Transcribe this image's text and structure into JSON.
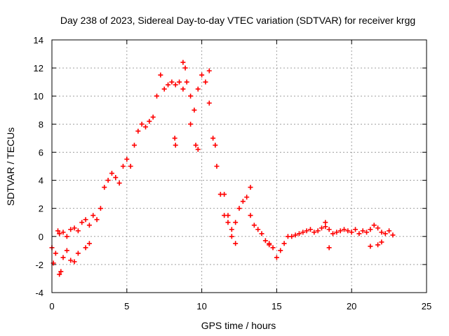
{
  "chart_data": {
    "type": "scatter",
    "title": "Day 238 of 2023, Sidereal Day-to-day VTEC variation (SDTVAR) for receiver krgg",
    "xlabel": "GPS time / hours",
    "ylabel": "SDTVAR / TECUs",
    "xlim": [
      0,
      25
    ],
    "ylim": [
      -4,
      14
    ],
    "xticks": [
      "0",
      "5",
      "10",
      "15",
      "20",
      "25"
    ],
    "yticks": [
      "-4",
      "-2",
      "0",
      "2",
      "4",
      "6",
      "8",
      "10",
      "12",
      "14"
    ],
    "grid": true,
    "marker": "+",
    "color": "#ff0000",
    "series": [
      {
        "name": "SDTVAR",
        "x": [
          0.0,
          0.25,
          0.5,
          0.75,
          1.0,
          1.25,
          1.5,
          1.75,
          2.0,
          2.25,
          2.5,
          2.75,
          3.0,
          3.25,
          3.5,
          3.75,
          4.0,
          4.25,
          4.5,
          4.75,
          5.0,
          5.25,
          5.5,
          5.75,
          6.0,
          6.25,
          6.5,
          6.75,
          7.0,
          7.25,
          7.5,
          7.75,
          8.0,
          8.25,
          8.5,
          8.75,
          9.0,
          9.25,
          9.5,
          9.75,
          10.0,
          10.25,
          10.5,
          10.75,
          11.0,
          11.25,
          11.5,
          11.75,
          12.0,
          12.25,
          12.5,
          12.75,
          13.0,
          13.25,
          13.5,
          13.75,
          14.0,
          14.25,
          14.5,
          14.75,
          15.0,
          15.25,
          15.5,
          15.75,
          16.0,
          16.25,
          16.5,
          16.75,
          17.0,
          17.25,
          17.5,
          17.75,
          18.0,
          18.25,
          18.5,
          18.75,
          19.0,
          19.25,
          19.5,
          19.75,
          20.0,
          20.25,
          20.5,
          20.75,
          21.0,
          21.25,
          21.5,
          21.75,
          22.0,
          22.25,
          22.5,
          22.75,
          0.5,
          0.6,
          0.75,
          1.0,
          1.25,
          1.5,
          1.75,
          2.25,
          2.5,
          0.1,
          0.4,
          8.2,
          8.25,
          8.75,
          8.9,
          9.25,
          9.6,
          9.75,
          10.5,
          10.9,
          11.5,
          11.75,
          12.0,
          12.25,
          13.25,
          14.5,
          18.5,
          18.25,
          21.25,
          21.75,
          22.0
        ],
        "y": [
          -0.8,
          -1.2,
          0.2,
          0.3,
          0.0,
          0.5,
          0.6,
          0.4,
          1.0,
          1.2,
          0.8,
          1.5,
          1.2,
          2.0,
          3.5,
          4.0,
          4.5,
          4.2,
          3.8,
          5.0,
          5.5,
          5.0,
          6.5,
          7.5,
          8.0,
          7.8,
          8.2,
          8.5,
          10.0,
          11.5,
          10.5,
          10.8,
          11.0,
          10.8,
          11.0,
          10.5,
          11.0,
          10.0,
          9.0,
          10.5,
          11.5,
          11.0,
          9.5,
          7.0,
          5.0,
          3.0,
          1.5,
          1.0,
          0.5,
          1.0,
          2.0,
          2.5,
          2.8,
          1.5,
          0.8,
          0.5,
          0.2,
          -0.3,
          -0.5,
          -0.8,
          -1.5,
          -1.0,
          -0.5,
          0.0,
          0.0,
          0.1,
          0.2,
          0.3,
          0.4,
          0.5,
          0.3,
          0.4,
          0.6,
          0.7,
          0.5,
          0.2,
          0.3,
          0.4,
          0.5,
          0.4,
          0.3,
          0.5,
          0.2,
          0.4,
          0.3,
          0.5,
          0.8,
          0.6,
          0.3,
          0.2,
          0.4,
          0.1,
          -2.7,
          -2.5,
          -1.5,
          -1.0,
          -1.7,
          -1.8,
          -1.2,
          -0.8,
          -0.5,
          -1.9,
          0.4,
          7.0,
          6.5,
          12.4,
          12.0,
          8.0,
          6.5,
          6.2,
          11.8,
          6.5,
          3.0,
          1.5,
          0.0,
          -0.5,
          3.5,
          -0.6,
          -0.8,
          1.0,
          -0.7,
          -0.6,
          -0.4
        ]
      }
    ]
  }
}
